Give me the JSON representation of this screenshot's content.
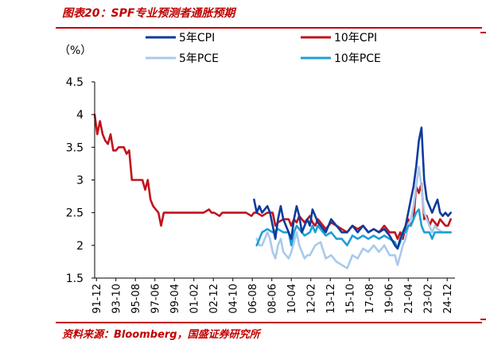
{
  "title": "图表20：SPF专业预测者通胀预期",
  "source": "资料来源：Bloomberg，国盛证券研究所",
  "colors": {
    "accent_red": "#C00000",
    "cpi5": "#0D3B9C",
    "cpi10": "#C0141C",
    "pce5": "#A9C9EC",
    "pce10": "#1E9FD8"
  },
  "chart_data": {
    "type": "line",
    "unit_label": "（%）",
    "ylim": [
      1.5,
      4.5
    ],
    "yticks": [
      "4.5",
      "4",
      "3.5",
      "3",
      "2.5",
      "2",
      "1.5"
    ],
    "ytick_values": [
      4.5,
      4,
      3.5,
      3,
      2.5,
      2,
      1.5
    ],
    "xlim": [
      1991.75,
      2025.5
    ],
    "xticks": [
      "91-12",
      "93-10",
      "95-08",
      "97-06",
      "99-04",
      "01-02",
      "02-12",
      "04-10",
      "06-08",
      "08-06",
      "10-04",
      "12-02",
      "13-12",
      "15-10",
      "17-08",
      "19-06",
      "21-04",
      "23-02",
      "24-12"
    ],
    "xtick_values": [
      1991.917,
      1993.75,
      1995.583,
      1997.417,
      1999.25,
      2001.083,
      2002.917,
      2004.75,
      2006.583,
      2008.417,
      2010.25,
      2012.083,
      2013.917,
      2015.75,
      2017.583,
      2019.417,
      2021.25,
      2023.083,
      2024.917
    ],
    "series": [
      {
        "name": "10年CPI",
        "color": "#C0141C",
        "width": 2.6,
        "x": [
          1991.75,
          1992.0,
          1992.25,
          1992.5,
          1992.75,
          1993.0,
          1993.25,
          1993.5,
          1993.75,
          1994.0,
          1994.25,
          1994.5,
          1994.75,
          1995.0,
          1995.25,
          1995.5,
          1995.75,
          1996.0,
          1996.25,
          1996.5,
          1996.75,
          1997.0,
          1997.25,
          1997.5,
          1997.75,
          1998.0,
          1998.25,
          1998.5,
          1998.75,
          1999.0,
          1999.25,
          1999.5,
          2000.0,
          2001.0,
          2002.0,
          2002.5,
          2002.75,
          2003.0,
          2003.5,
          2003.75,
          2004.0,
          2005.0,
          2006.0,
          2006.5,
          2006.75,
          2007.0,
          2007.5,
          2008.0,
          2008.25,
          2008.5,
          2008.75,
          2009.0,
          2009.5,
          2010.0,
          2010.25,
          2010.5,
          2010.75,
          2011.0,
          2011.5,
          2012.0,
          2012.25,
          2012.5,
          2012.75,
          2013.0,
          2013.5,
          2014.0,
          2014.5,
          2015.0,
          2015.5,
          2016.0,
          2016.5,
          2017.0,
          2017.5,
          2018.0,
          2018.5,
          2019.0,
          2019.5,
          2020.0,
          2020.25,
          2020.5,
          2020.75,
          2021.0,
          2021.25,
          2021.5,
          2021.75,
          2022.0,
          2022.25,
          2022.5,
          2022.75,
          2023.0,
          2023.25,
          2023.5,
          2023.75,
          2024.0,
          2024.25,
          2024.5,
          2024.75,
          2025.0,
          2025.25
        ],
        "y": [
          4.0,
          3.7,
          3.9,
          3.7,
          3.6,
          3.55,
          3.7,
          3.45,
          3.45,
          3.5,
          3.5,
          3.5,
          3.4,
          3.45,
          3.0,
          3.0,
          3.0,
          3.0,
          3.0,
          2.85,
          3.0,
          2.7,
          2.6,
          2.55,
          2.5,
          2.3,
          2.5,
          2.5,
          2.5,
          2.5,
          2.5,
          2.5,
          2.5,
          2.5,
          2.5,
          2.55,
          2.5,
          2.5,
          2.45,
          2.5,
          2.5,
          2.5,
          2.5,
          2.45,
          2.5,
          2.5,
          2.45,
          2.5,
          2.5,
          2.5,
          2.3,
          2.35,
          2.4,
          2.4,
          2.3,
          2.4,
          2.35,
          2.45,
          2.35,
          2.45,
          2.35,
          2.3,
          2.4,
          2.35,
          2.25,
          2.35,
          2.3,
          2.25,
          2.2,
          2.3,
          2.25,
          2.3,
          2.2,
          2.25,
          2.2,
          2.3,
          2.2,
          2.2,
          2.1,
          2.2,
          2.1,
          2.3,
          2.4,
          2.3,
          2.4,
          2.9,
          2.8,
          2.95,
          2.4,
          2.45,
          2.3,
          2.4,
          2.35,
          2.3,
          2.4,
          2.35,
          2.3,
          2.3,
          2.4
        ]
      },
      {
        "name": "5年CPI",
        "color": "#0D3B9C",
        "width": 2.6,
        "x": [
          2006.75,
          2007.0,
          2007.25,
          2007.5,
          2007.75,
          2008.0,
          2008.25,
          2008.5,
          2008.75,
          2009.0,
          2009.25,
          2009.5,
          2009.75,
          2010.0,
          2010.25,
          2010.5,
          2010.75,
          2011.0,
          2011.25,
          2011.5,
          2011.75,
          2012.0,
          2012.25,
          2012.5,
          2012.75,
          2013.0,
          2013.5,
          2014.0,
          2014.5,
          2015.0,
          2015.5,
          2016.0,
          2016.5,
          2017.0,
          2017.5,
          2018.0,
          2018.5,
          2019.0,
          2019.5,
          2020.0,
          2020.25,
          2020.5,
          2020.75,
          2021.0,
          2021.25,
          2021.5,
          2021.75,
          2022.0,
          2022.25,
          2022.5,
          2022.75,
          2023.0,
          2023.25,
          2023.5,
          2023.75,
          2024.0,
          2024.25,
          2024.5,
          2024.75,
          2025.0,
          2025.25
        ],
        "y": [
          2.7,
          2.5,
          2.6,
          2.5,
          2.55,
          2.6,
          2.5,
          2.3,
          2.1,
          2.4,
          2.6,
          2.4,
          2.3,
          2.2,
          2.1,
          2.4,
          2.6,
          2.45,
          2.2,
          2.3,
          2.4,
          2.3,
          2.55,
          2.45,
          2.35,
          2.3,
          2.2,
          2.4,
          2.3,
          2.2,
          2.2,
          2.3,
          2.2,
          2.3,
          2.2,
          2.25,
          2.2,
          2.25,
          2.15,
          2.0,
          1.95,
          2.1,
          2.2,
          2.3,
          2.5,
          2.7,
          2.9,
          3.2,
          3.6,
          3.8,
          3.0,
          2.7,
          2.6,
          2.5,
          2.6,
          2.7,
          2.5,
          2.45,
          2.5,
          2.45,
          2.5
        ]
      },
      {
        "name": "5年PCE",
        "color": "#A9C9EC",
        "width": 2.6,
        "x": [
          2007.0,
          2007.25,
          2007.5,
          2007.75,
          2008.0,
          2008.25,
          2008.5,
          2008.75,
          2009.0,
          2009.25,
          2009.5,
          2009.75,
          2010.0,
          2010.25,
          2010.5,
          2010.75,
          2011.0,
          2011.25,
          2011.5,
          2011.75,
          2012.0,
          2012.5,
          2013.0,
          2013.5,
          2014.0,
          2014.5,
          2015.0,
          2015.5,
          2016.0,
          2016.5,
          2017.0,
          2017.5,
          2018.0,
          2018.5,
          2019.0,
          2019.5,
          2020.0,
          2020.25,
          2020.5,
          2020.75,
          2021.0,
          2021.25,
          2021.5,
          2021.75,
          2022.0,
          2022.25,
          2022.5,
          2022.75,
          2023.0,
          2023.25,
          2023.5,
          2023.75,
          2024.0,
          2024.5,
          2025.0,
          2025.25
        ],
        "y": [
          2.1,
          2.0,
          2.0,
          2.1,
          2.2,
          2.1,
          1.9,
          1.8,
          2.0,
          2.1,
          1.9,
          1.85,
          1.8,
          1.9,
          2.05,
          2.2,
          2.0,
          1.9,
          1.8,
          1.85,
          1.85,
          2.0,
          2.05,
          1.8,
          1.85,
          1.75,
          1.7,
          1.65,
          1.85,
          1.8,
          1.95,
          1.9,
          2.0,
          1.9,
          2.0,
          1.85,
          1.85,
          1.7,
          1.85,
          2.0,
          2.1,
          2.3,
          2.4,
          2.6,
          2.9,
          3.2,
          2.9,
          2.5,
          2.4,
          2.3,
          2.2,
          2.3,
          2.25,
          2.2,
          2.2,
          2.2
        ]
      },
      {
        "name": "10年PCE",
        "color": "#1E9FD8",
        "width": 2.6,
        "x": [
          2007.0,
          2007.5,
          2008.0,
          2008.5,
          2009.0,
          2009.5,
          2010.0,
          2010.25,
          2010.5,
          2010.75,
          2011.0,
          2011.5,
          2012.0,
          2012.25,
          2012.5,
          2012.75,
          2013.0,
          2013.5,
          2014.0,
          2014.5,
          2015.0,
          2015.5,
          2016.0,
          2016.5,
          2017.0,
          2017.5,
          2018.0,
          2018.5,
          2019.0,
          2019.5,
          2020.0,
          2020.25,
          2020.5,
          2020.75,
          2021.0,
          2021.25,
          2021.5,
          2021.75,
          2022.0,
          2022.25,
          2022.5,
          2022.75,
          2023.0,
          2023.25,
          2023.5,
          2023.75,
          2024.0,
          2024.5,
          2025.0,
          2025.25
        ],
        "y": [
          2.0,
          2.2,
          2.25,
          2.2,
          2.25,
          2.2,
          2.2,
          2.0,
          2.2,
          2.3,
          2.25,
          2.15,
          2.2,
          2.3,
          2.2,
          2.3,
          2.25,
          2.15,
          2.2,
          2.1,
          2.1,
          2.0,
          2.15,
          2.1,
          2.15,
          2.1,
          2.15,
          2.1,
          2.15,
          2.1,
          2.05,
          1.95,
          2.05,
          2.2,
          2.2,
          2.3,
          2.3,
          2.4,
          2.5,
          2.55,
          2.3,
          2.2,
          2.2,
          2.2,
          2.1,
          2.2,
          2.2,
          2.2,
          2.2,
          2.2
        ]
      }
    ],
    "legend": [
      {
        "label": "5年CPI",
        "color": "#0D3B9C"
      },
      {
        "label": "10年CPI",
        "color": "#C0141C"
      },
      {
        "label": "5年PCE",
        "color": "#A9C9EC"
      },
      {
        "label": "10年PCE",
        "color": "#1E9FD8"
      }
    ]
  }
}
